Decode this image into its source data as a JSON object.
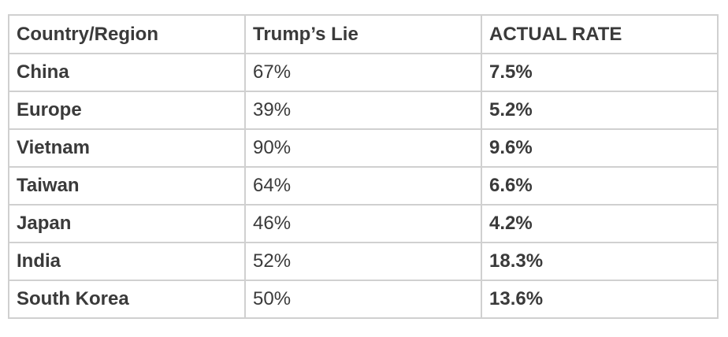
{
  "table": {
    "headers": [
      "Country/Region",
      "Trump’s Lie",
      "ACTUAL RATE"
    ],
    "rows": [
      {
        "country": "China",
        "lie": "67%",
        "actual": "7.5%"
      },
      {
        "country": "Europe",
        "lie": "39%",
        "actual": "5.2%"
      },
      {
        "country": "Vietnam",
        "lie": "90%",
        "actual": "9.6%"
      },
      {
        "country": "Taiwan",
        "lie": "64%",
        "actual": "6.6%"
      },
      {
        "country": "Japan",
        "lie": "46%",
        "actual": "4.2%"
      },
      {
        "country": "India",
        "lie": "52%",
        "actual": "18.3%"
      },
      {
        "country": "South Korea",
        "lie": "50%",
        "actual": "13.6%"
      }
    ]
  },
  "colors": {
    "text": "#3a3a3a",
    "border": "#d0d0d0",
    "background": "#ffffff"
  }
}
